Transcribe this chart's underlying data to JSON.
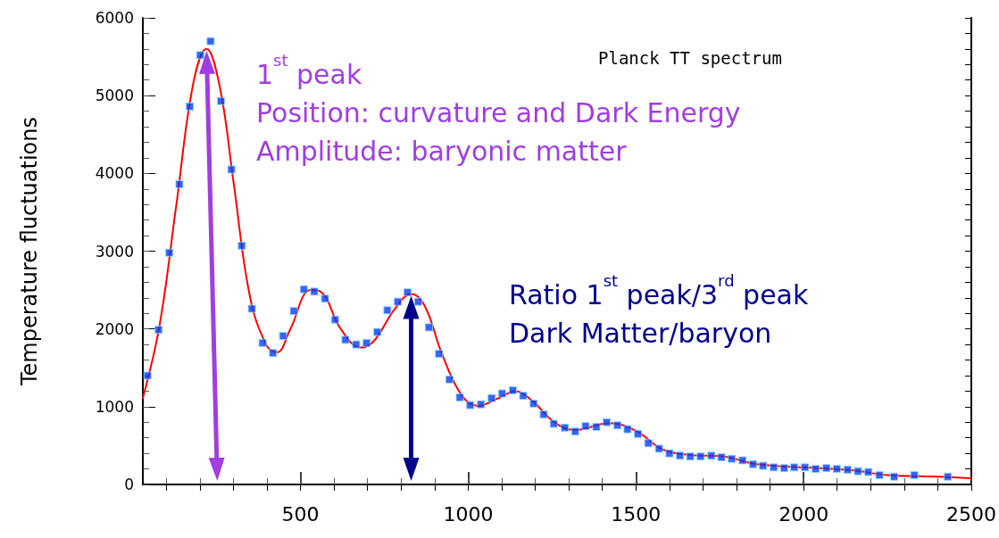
{
  "chart_data": {
    "type": "scatter",
    "ylabel": "Temperature fluctuations",
    "annotations": [
      "Planck TT spectrum",
      "1$^{st}$ peak",
      "Position: curvature and Dark Energy",
      "Amplitude: baryonic matter",
      "Ratio 1$^{st}$ peak/3$^{rd}$ peak",
      "Dark Matter/baryon"
    ],
    "xlim": [
      30,
      2500
    ],
    "xticks": [
      500,
      1000,
      1500,
      2000,
      2500
    ],
    "ylim": [
      0,
      6000
    ],
    "yticks": [
      0,
      1000,
      2000,
      3000,
      4000,
      5000,
      6000
    ],
    "grid": false,
    "marker": "square",
    "series": [
      {
        "color": "#0a3cf0",
        "x": [
          44,
          77,
          109,
          139,
          170,
          201,
          232,
          263,
          294,
          325,
          355,
          387,
          418,
          448,
          480,
          510,
          541,
          573,
          603,
          634,
          666,
          697,
          729,
          759,
          790,
          819,
          851,
          883,
          913,
          944,
          975,
          1006,
          1038,
          1070,
          1101,
          1133,
          1164,
          1195,
          1225,
          1255,
          1288,
          1319,
          1350,
          1382,
          1413,
          1445,
          1475,
          1506,
          1537,
          1569,
          1600,
          1631,
          1662,
          1693,
          1725,
          1755,
          1786,
          1818,
          1849,
          1879,
          1911,
          1942,
          1972,
          2004,
          2036,
          2068,
          2099,
          2131,
          2162,
          2193,
          2226,
          2270,
          2330,
          2430
        ],
        "values": [
          1400,
          1990,
          2980,
          3860,
          4860,
          5520,
          5700,
          4930,
          4050,
          3070,
          2260,
          1820,
          1690,
          1910,
          2230,
          2510,
          2480,
          2390,
          2120,
          1860,
          1800,
          1820,
          1960,
          2240,
          2350,
          2470,
          2350,
          2020,
          1680,
          1350,
          1120,
          1020,
          1030,
          1110,
          1170,
          1210,
          1140,
          1040,
          900,
          780,
          730,
          680,
          750,
          740,
          800,
          760,
          710,
          650,
          530,
          460,
          400,
          370,
          360,
          360,
          370,
          350,
          330,
          310,
          260,
          240,
          220,
          210,
          220,
          220,
          200,
          210,
          200,
          190,
          170,
          160,
          120,
          100,
          120,
          100
        ]
      },
      {
        "type": "line",
        "color": "#ff0000",
        "line_style": "solid",
        "marker": "none",
        "x": [
          30,
          80,
          130,
          180,
          220,
          260,
          300,
          350,
          400,
          430,
          470,
          530,
          560,
          620,
          680,
          720,
          780,
          830,
          870,
          920,
          980,
          1030,
          1090,
          1140,
          1190,
          1260,
          1320,
          1420,
          1500,
          1580,
          1660,
          1760,
          1860,
          2000,
          2150,
          2250,
          2400,
          2500
        ],
        "values": [
          1110,
          2050,
          3600,
          5150,
          5600,
          5100,
          3900,
          2400,
          1780,
          1700,
          2000,
          2500,
          2480,
          2000,
          1760,
          1850,
          2250,
          2450,
          2300,
          1700,
          1150,
          1010,
          1110,
          1200,
          1080,
          790,
          700,
          790,
          690,
          450,
          380,
          360,
          260,
          220,
          180,
          120,
          100,
          80
        ]
      }
    ]
  }
}
